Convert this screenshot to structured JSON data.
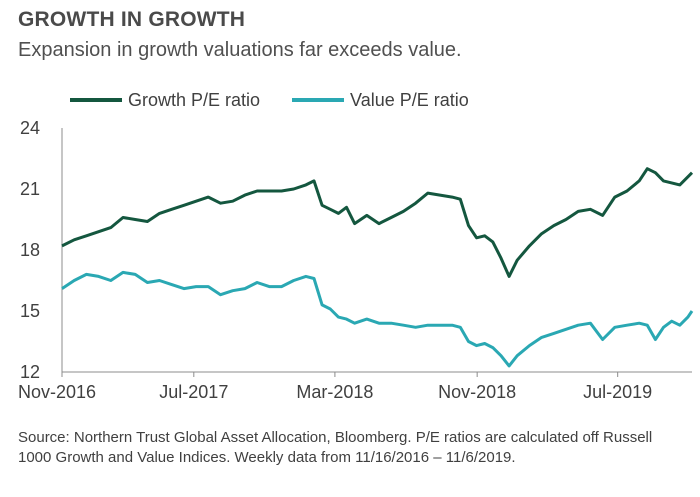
{
  "title": "GROWTH IN GROWTH",
  "subtitle": "Expansion in growth valuations far exceeds value.",
  "legend": [
    {
      "label": "Growth P/E ratio",
      "color": "#14573f"
    },
    {
      "label": "Value P/E ratio",
      "color": "#2aa8b3"
    }
  ],
  "source": "Source: Northern Trust Global Asset Allocation, Bloomberg. P/E ratios are calculated off Russell 1000 Growth and Value Indices. Weekly data from 11/16/2016 – 11/6/2019.",
  "chart_data": {
    "type": "line",
    "title": "GROWTH IN GROWTH",
    "subtitle": "Expansion in growth valuations far exceeds value.",
    "xlabel": "",
    "ylabel": "",
    "xlim": [
      "2016-11-16",
      "2019-11-06"
    ],
    "ylim": [
      12,
      24
    ],
    "yticks": [
      12,
      15,
      18,
      21,
      24
    ],
    "xtick_labels": [
      "Nov-2016",
      "Jul-2017",
      "Mar-2018",
      "Nov-2018",
      "Jul-2019"
    ],
    "xtick_dates": [
      "2016-11-16",
      "2017-07-01",
      "2018-03-01",
      "2018-11-01",
      "2019-07-01"
    ],
    "grid": false,
    "legend_position": "top-left",
    "series": [
      {
        "name": "Growth P/E ratio",
        "color": "#14573f",
        "points": [
          [
            "2016-11-16",
            18.2
          ],
          [
            "2016-12-07",
            18.5
          ],
          [
            "2016-12-28",
            18.7
          ],
          [
            "2017-01-18",
            18.9
          ],
          [
            "2017-02-08",
            19.1
          ],
          [
            "2017-03-01",
            19.6
          ],
          [
            "2017-03-22",
            19.5
          ],
          [
            "2017-04-12",
            19.4
          ],
          [
            "2017-05-03",
            19.8
          ],
          [
            "2017-05-24",
            20.0
          ],
          [
            "2017-06-14",
            20.2
          ],
          [
            "2017-07-05",
            20.4
          ],
          [
            "2017-07-26",
            20.6
          ],
          [
            "2017-08-16",
            20.3
          ],
          [
            "2017-09-06",
            20.4
          ],
          [
            "2017-09-27",
            20.7
          ],
          [
            "2017-10-18",
            20.9
          ],
          [
            "2017-11-08",
            20.9
          ],
          [
            "2017-11-29",
            20.9
          ],
          [
            "2017-12-20",
            21.0
          ],
          [
            "2018-01-10",
            21.2
          ],
          [
            "2018-01-24",
            21.4
          ],
          [
            "2018-02-07",
            20.2
          ],
          [
            "2018-02-21",
            20.0
          ],
          [
            "2018-03-07",
            19.8
          ],
          [
            "2018-03-21",
            20.1
          ],
          [
            "2018-04-04",
            19.3
          ],
          [
            "2018-04-25",
            19.7
          ],
          [
            "2018-05-16",
            19.3
          ],
          [
            "2018-06-06",
            19.6
          ],
          [
            "2018-06-27",
            19.9
          ],
          [
            "2018-07-18",
            20.3
          ],
          [
            "2018-08-08",
            20.8
          ],
          [
            "2018-08-29",
            20.7
          ],
          [
            "2018-09-19",
            20.6
          ],
          [
            "2018-10-03",
            20.5
          ],
          [
            "2018-10-17",
            19.2
          ],
          [
            "2018-10-31",
            18.6
          ],
          [
            "2018-11-14",
            18.7
          ],
          [
            "2018-11-28",
            18.4
          ],
          [
            "2018-12-12",
            17.6
          ],
          [
            "2018-12-26",
            16.7
          ],
          [
            "2019-01-09",
            17.5
          ],
          [
            "2019-01-30",
            18.2
          ],
          [
            "2019-02-20",
            18.8
          ],
          [
            "2019-03-13",
            19.2
          ],
          [
            "2019-04-03",
            19.5
          ],
          [
            "2019-04-24",
            19.9
          ],
          [
            "2019-05-15",
            20.0
          ],
          [
            "2019-06-05",
            19.7
          ],
          [
            "2019-06-26",
            20.6
          ],
          [
            "2019-07-17",
            20.9
          ],
          [
            "2019-08-07",
            21.4
          ],
          [
            "2019-08-21",
            22.0
          ],
          [
            "2019-09-04",
            21.8
          ],
          [
            "2019-09-18",
            21.4
          ],
          [
            "2019-10-02",
            21.3
          ],
          [
            "2019-10-16",
            21.2
          ],
          [
            "2019-10-30",
            21.6
          ],
          [
            "2019-11-06",
            21.8
          ]
        ]
      },
      {
        "name": "Value P/E ratio",
        "color": "#2aa8b3",
        "points": [
          [
            "2016-11-16",
            16.1
          ],
          [
            "2016-12-07",
            16.5
          ],
          [
            "2016-12-28",
            16.8
          ],
          [
            "2017-01-18",
            16.7
          ],
          [
            "2017-02-08",
            16.5
          ],
          [
            "2017-03-01",
            16.9
          ],
          [
            "2017-03-22",
            16.8
          ],
          [
            "2017-04-12",
            16.4
          ],
          [
            "2017-05-03",
            16.5
          ],
          [
            "2017-05-24",
            16.3
          ],
          [
            "2017-06-14",
            16.1
          ],
          [
            "2017-07-05",
            16.2
          ],
          [
            "2017-07-26",
            16.2
          ],
          [
            "2017-08-16",
            15.8
          ],
          [
            "2017-09-06",
            16.0
          ],
          [
            "2017-09-27",
            16.1
          ],
          [
            "2017-10-18",
            16.4
          ],
          [
            "2017-11-08",
            16.2
          ],
          [
            "2017-11-29",
            16.2
          ],
          [
            "2017-12-20",
            16.5
          ],
          [
            "2018-01-10",
            16.7
          ],
          [
            "2018-01-24",
            16.6
          ],
          [
            "2018-02-07",
            15.3
          ],
          [
            "2018-02-21",
            15.1
          ],
          [
            "2018-03-07",
            14.7
          ],
          [
            "2018-03-21",
            14.6
          ],
          [
            "2018-04-04",
            14.4
          ],
          [
            "2018-04-25",
            14.6
          ],
          [
            "2018-05-16",
            14.4
          ],
          [
            "2018-06-06",
            14.4
          ],
          [
            "2018-06-27",
            14.3
          ],
          [
            "2018-07-18",
            14.2
          ],
          [
            "2018-08-08",
            14.3
          ],
          [
            "2018-08-29",
            14.3
          ],
          [
            "2018-09-19",
            14.3
          ],
          [
            "2018-10-03",
            14.2
          ],
          [
            "2018-10-17",
            13.5
          ],
          [
            "2018-10-31",
            13.3
          ],
          [
            "2018-11-14",
            13.4
          ],
          [
            "2018-11-28",
            13.2
          ],
          [
            "2018-12-12",
            12.8
          ],
          [
            "2018-12-26",
            12.3
          ],
          [
            "2019-01-09",
            12.8
          ],
          [
            "2019-01-30",
            13.3
          ],
          [
            "2019-02-20",
            13.7
          ],
          [
            "2019-03-13",
            13.9
          ],
          [
            "2019-04-03",
            14.1
          ],
          [
            "2019-04-24",
            14.3
          ],
          [
            "2019-05-15",
            14.4
          ],
          [
            "2019-06-05",
            13.6
          ],
          [
            "2019-06-26",
            14.2
          ],
          [
            "2019-07-17",
            14.3
          ],
          [
            "2019-08-07",
            14.4
          ],
          [
            "2019-08-21",
            14.3
          ],
          [
            "2019-09-04",
            13.6
          ],
          [
            "2019-09-18",
            14.2
          ],
          [
            "2019-10-02",
            14.5
          ],
          [
            "2019-10-16",
            14.3
          ],
          [
            "2019-10-30",
            14.7
          ],
          [
            "2019-11-06",
            15.0
          ]
        ]
      }
    ]
  }
}
